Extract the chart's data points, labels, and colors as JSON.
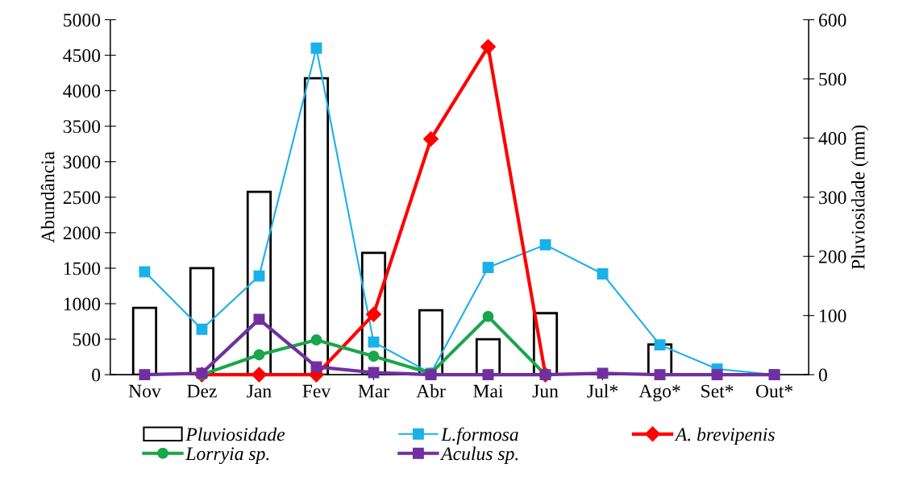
{
  "chart_data": {
    "type": "line",
    "ylabel": "Abundância",
    "y2label": "Pluviosidade (mm)",
    "categories": [
      "Nov",
      "Dez",
      "Jan",
      "Fev",
      "Mar",
      "Abr",
      "Mai",
      "Jun",
      "Jul*",
      "Ago*",
      "Set*",
      "Out*"
    ],
    "series": [
      {
        "name": "Pluviosidade",
        "type": "bar",
        "axis": "y2",
        "color": "#ffffff",
        "values": [
          113,
          180,
          309,
          501,
          206,
          109,
          60,
          104,
          0,
          51,
          0,
          0
        ]
      },
      {
        "name": "L.formosa",
        "color": "#1ab0e8",
        "marker": "square",
        "values": [
          1450,
          640,
          1390,
          4600,
          460,
          20,
          1510,
          1830,
          1420,
          420,
          80,
          0
        ]
      },
      {
        "name": "A. brevipenis",
        "color": "#ff0000",
        "marker": "diamond",
        "values": [
          null,
          0,
          0,
          0,
          850,
          3320,
          4620,
          0,
          null,
          null,
          null,
          null
        ]
      },
      {
        "name": "Lorryia sp.",
        "color": "#1aa64a",
        "marker": "circle",
        "values": [
          null,
          0,
          280,
          490,
          260,
          20,
          820,
          0,
          null,
          null,
          null,
          null
        ]
      },
      {
        "name": "Aculus sp.",
        "color": "#7030a0",
        "marker": "square",
        "values": [
          0,
          20,
          780,
          110,
          30,
          0,
          0,
          0,
          20,
          0,
          0,
          0
        ]
      }
    ],
    "ylim": [
      0,
      5000
    ],
    "yticks": [
      0,
      500,
      1000,
      1500,
      2000,
      2500,
      3000,
      3500,
      4000,
      4500,
      5000
    ],
    "y2lim": [
      0,
      600
    ],
    "y2ticks": [
      0,
      100,
      200,
      300,
      400,
      500,
      600
    ],
    "grid": false,
    "legend": "bottom"
  }
}
